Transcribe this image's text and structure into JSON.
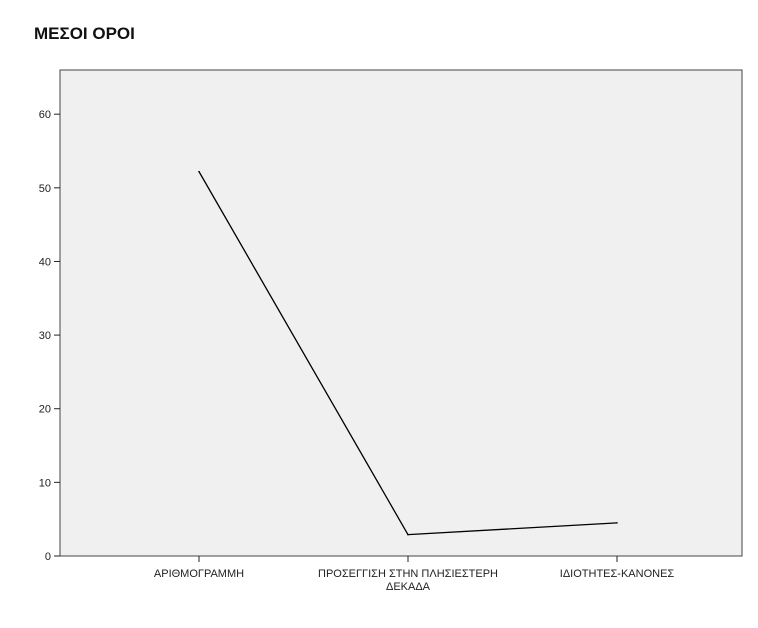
{
  "chart_data": {
    "type": "line",
    "title": "ΜΕΣΟΙ ΟΡΟΙ",
    "xlabel": "",
    "ylabel": "",
    "categories": [
      [
        "ΑΡΙΘΜΟΓΡΑΜΜΗ"
      ],
      [
        "ΠΡΟΣΕΓΓΙΣΗ ΣΤΗΝ ΠΛΗΣΙΕΣΤΕΡΗ",
        "ΔΕΚΑΔΑ"
      ],
      [
        "ΙΔΙΟΤΗΤΕΣ-ΚΑΝΟΝΕΣ"
      ]
    ],
    "series": [
      {
        "values": [
          52.2,
          2.9,
          4.5
        ],
        "color": "#000000"
      }
    ],
    "ylim": [
      0,
      66
    ],
    "yticks": [
      0,
      10,
      20,
      30,
      40,
      50,
      60
    ],
    "grid": false,
    "plot_background": "#f0f0f0",
    "legend": "none"
  }
}
